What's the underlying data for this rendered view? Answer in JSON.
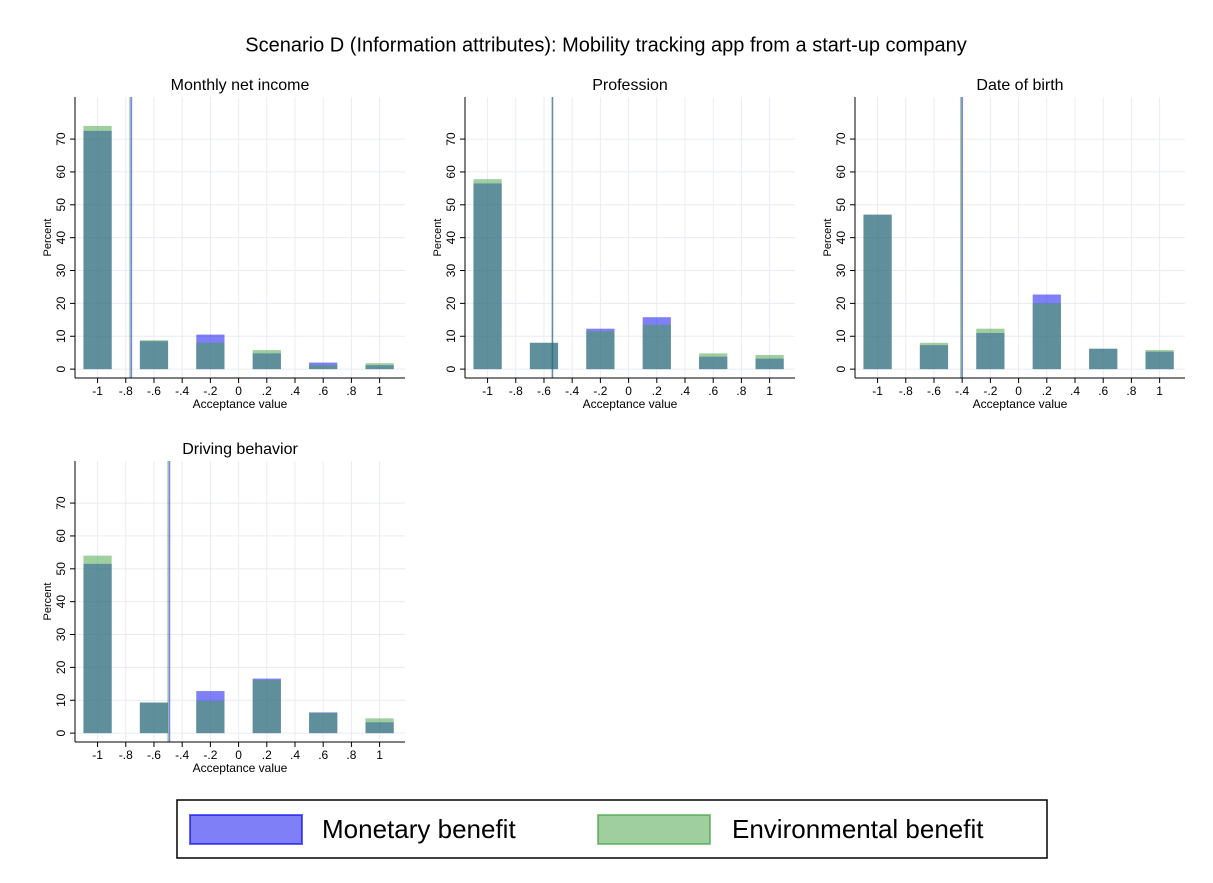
{
  "title": "Scenario D (Information attributes): Mobility tracking app from a start-up company",
  "legend": {
    "labels": [
      "Monetary benefit",
      "Environmental benefit"
    ],
    "colors": [
      "#0000f0",
      "#40a040"
    ],
    "opacity": 0.5,
    "position": "bottom"
  },
  "chart_data": [
    {
      "type": "bar",
      "title": "Monthly net income",
      "xlabel": "Acceptance value",
      "ylabel": "Percent",
      "x": [
        -1,
        -0.6,
        -0.2,
        0.2,
        0.6,
        1
      ],
      "series": [
        {
          "values": [
            72.5,
            8.5,
            10.5,
            4.8,
            2,
            1.2
          ],
          "mean": -0.76
        },
        {
          "values": [
            74,
            8.8,
            8,
            5.8,
            1.2,
            1.8
          ],
          "mean": -0.77
        }
      ],
      "xlim": [
        -1.16,
        1.18
      ],
      "ylim": [
        -2.7,
        82.8
      ],
      "xticks": [
        -1,
        {
          "value": -0.8,
          "label": "-.8"
        },
        {
          "value": -0.6,
          "label": "-.6"
        },
        {
          "value": -0.4,
          "label": "-.4"
        },
        {
          "value": -0.2,
          "label": "-.2"
        },
        0,
        {
          "value": 0.2,
          "label": ".2"
        },
        {
          "value": 0.4,
          "label": ".4"
        },
        {
          "value": 0.6,
          "label": ".6"
        },
        {
          "value": 0.8,
          "label": ".8"
        },
        1
      ],
      "yticks": [
        0,
        10,
        20,
        30,
        40,
        50,
        60,
        70
      ],
      "grid": true
    },
    {
      "type": "bar",
      "title": "Profession",
      "xlabel": "Acceptance value",
      "ylabel": "Percent",
      "x": [
        -1,
        -0.6,
        -0.2,
        0.2,
        0.6,
        1
      ],
      "series": [
        {
          "values": [
            56.5,
            8,
            12.3,
            15.8,
            3.8,
            3.2
          ],
          "mean": -0.54
        },
        {
          "values": [
            57.8,
            8,
            11.5,
            13.5,
            4.8,
            4.3
          ],
          "mean": -0.54
        }
      ],
      "xlim": [
        -1.16,
        1.18
      ],
      "ylim": [
        -2.7,
        82.8
      ],
      "xticks": [
        -1,
        {
          "value": -0.8,
          "label": "-.8"
        },
        {
          "value": -0.6,
          "label": "-.6"
        },
        {
          "value": -0.4,
          "label": "-.4"
        },
        {
          "value": -0.2,
          "label": "-.2"
        },
        0,
        {
          "value": 0.2,
          "label": ".2"
        },
        {
          "value": 0.4,
          "label": ".4"
        },
        {
          "value": 0.6,
          "label": ".6"
        },
        {
          "value": 0.8,
          "label": ".8"
        },
        1
      ],
      "yticks": [
        0,
        10,
        20,
        30,
        40,
        50,
        60,
        70
      ],
      "grid": true
    },
    {
      "type": "bar",
      "title": "Date of birth",
      "xlabel": "Acceptance value",
      "ylabel": "Percent",
      "x": [
        -1,
        -0.6,
        -0.2,
        0.2,
        0.6,
        1
      ],
      "series": [
        {
          "values": [
            47,
            7.3,
            11,
            22.7,
            6.2,
            5.3
          ],
          "mean": -0.4
        },
        {
          "values": [
            47,
            8,
            12.3,
            20,
            6.2,
            5.8
          ],
          "mean": -0.41
        }
      ],
      "xlim": [
        -1.16,
        1.18
      ],
      "ylim": [
        -2.7,
        82.8
      ],
      "xticks": [
        -1,
        {
          "value": -0.8,
          "label": "-.8"
        },
        {
          "value": -0.6,
          "label": "-.6"
        },
        {
          "value": -0.4,
          "label": "-.4"
        },
        {
          "value": -0.2,
          "label": "-.2"
        },
        0,
        {
          "value": 0.2,
          "label": ".2"
        },
        {
          "value": 0.4,
          "label": ".4"
        },
        {
          "value": 0.6,
          "label": ".6"
        },
        {
          "value": 0.8,
          "label": ".8"
        },
        1
      ],
      "yticks": [
        0,
        10,
        20,
        30,
        40,
        50,
        60,
        70
      ],
      "grid": true
    },
    {
      "type": "bar",
      "title": "Driving behavior",
      "xlabel": "Acceptance value",
      "ylabel": "Percent",
      "x": [
        -1,
        -0.6,
        -0.2,
        0.2,
        0.6,
        1
      ],
      "series": [
        {
          "values": [
            51.5,
            9.3,
            12.8,
            16.6,
            6.3,
            3.3
          ],
          "mean": -0.49
        },
        {
          "values": [
            54,
            9.3,
            9.8,
            16.2,
            6.2,
            4.5
          ],
          "mean": -0.5
        }
      ],
      "xlim": [
        -1.16,
        1.18
      ],
      "ylim": [
        -2.7,
        82.8
      ],
      "xticks": [
        -1,
        {
          "value": -0.8,
          "label": "-.8"
        },
        {
          "value": -0.6,
          "label": "-.6"
        },
        {
          "value": -0.4,
          "label": "-.4"
        },
        {
          "value": -0.2,
          "label": "-.2"
        },
        0,
        {
          "value": 0.2,
          "label": ".2"
        },
        {
          "value": 0.4,
          "label": ".4"
        },
        {
          "value": 0.6,
          "label": ".6"
        },
        {
          "value": 0.8,
          "label": ".8"
        },
        1
      ],
      "yticks": [
        0,
        10,
        20,
        30,
        40,
        50,
        60,
        70
      ],
      "grid": true
    }
  ]
}
